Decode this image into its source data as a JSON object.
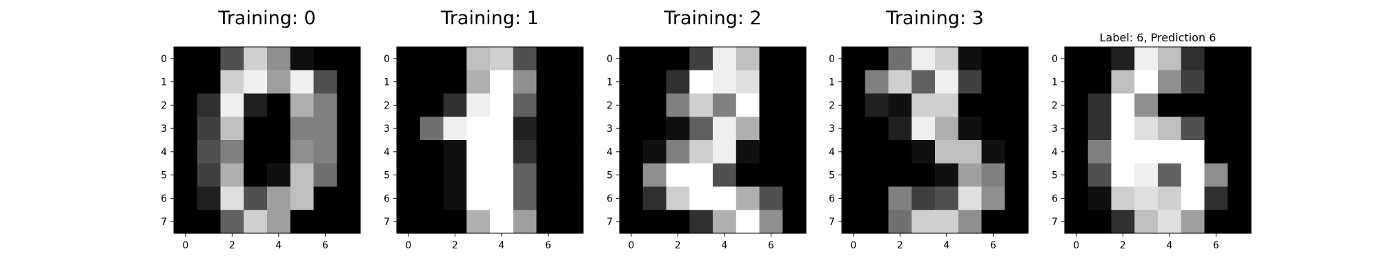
{
  "chart_data": [
    {
      "type": "heatmap",
      "title": "Training: 0",
      "x_ticks": [
        "0",
        "2",
        "4",
        "6"
      ],
      "y_ticks": [
        "0",
        "1",
        "2",
        "3",
        "4",
        "5",
        "6",
        "7"
      ],
      "value_range": [
        0,
        16
      ],
      "colormap": "gray",
      "values": [
        [
          0,
          0,
          5,
          13,
          9,
          1,
          0,
          0
        ],
        [
          0,
          0,
          13,
          15,
          10,
          15,
          5,
          0
        ],
        [
          0,
          3,
          15,
          2,
          0,
          11,
          8,
          0
        ],
        [
          0,
          4,
          12,
          0,
          0,
          8,
          8,
          0
        ],
        [
          0,
          5,
          8,
          0,
          0,
          9,
          8,
          0
        ],
        [
          0,
          4,
          11,
          0,
          1,
          12,
          7,
          0
        ],
        [
          0,
          2,
          14,
          5,
          10,
          12,
          0,
          0
        ],
        [
          0,
          0,
          6,
          13,
          10,
          0,
          0,
          0
        ]
      ]
    },
    {
      "type": "heatmap",
      "title": "Training: 1",
      "x_ticks": [
        "0",
        "2",
        "4",
        "6"
      ],
      "y_ticks": [
        "0",
        "1",
        "2",
        "3",
        "4",
        "5",
        "6",
        "7"
      ],
      "value_range": [
        0,
        16
      ],
      "colormap": "gray",
      "values": [
        [
          0,
          0,
          0,
          12,
          13,
          5,
          0,
          0
        ],
        [
          0,
          0,
          0,
          11,
          16,
          9,
          0,
          0
        ],
        [
          0,
          0,
          3,
          15,
          16,
          6,
          0,
          0
        ],
        [
          0,
          7,
          15,
          16,
          16,
          2,
          0,
          0
        ],
        [
          0,
          0,
          1,
          16,
          16,
          3,
          0,
          0
        ],
        [
          0,
          0,
          1,
          16,
          16,
          6,
          0,
          0
        ],
        [
          0,
          0,
          1,
          16,
          16,
          6,
          0,
          0
        ],
        [
          0,
          0,
          0,
          11,
          16,
          10,
          0,
          0
        ]
      ]
    },
    {
      "type": "heatmap",
      "title": "Training: 2",
      "x_ticks": [
        "0",
        "2",
        "4",
        "6"
      ],
      "y_ticks": [
        "0",
        "1",
        "2",
        "3",
        "4",
        "5",
        "6",
        "7"
      ],
      "value_range": [
        0,
        16
      ],
      "colormap": "gray",
      "values": [
        [
          0,
          0,
          0,
          4,
          15,
          12,
          0,
          0
        ],
        [
          0,
          0,
          3,
          16,
          15,
          14,
          0,
          0
        ],
        [
          0,
          0,
          8,
          13,
          8,
          16,
          0,
          0
        ],
        [
          0,
          0,
          1,
          6,
          15,
          11,
          0,
          0
        ],
        [
          0,
          1,
          8,
          13,
          15,
          1,
          0,
          0
        ],
        [
          0,
          9,
          16,
          16,
          5,
          0,
          0,
          0
        ],
        [
          0,
          3,
          13,
          16,
          16,
          11,
          5,
          0
        ],
        [
          0,
          0,
          0,
          3,
          11,
          16,
          9,
          0
        ]
      ]
    },
    {
      "type": "heatmap",
      "title": "Training: 3",
      "x_ticks": [
        "0",
        "2",
        "4",
        "6"
      ],
      "y_ticks": [
        "0",
        "1",
        "2",
        "3",
        "4",
        "5",
        "6",
        "7"
      ],
      "value_range": [
        0,
        16
      ],
      "colormap": "gray",
      "values": [
        [
          0,
          0,
          7,
          15,
          13,
          1,
          0,
          0
        ],
        [
          0,
          8,
          13,
          6,
          15,
          4,
          0,
          0
        ],
        [
          0,
          2,
          1,
          13,
          13,
          0,
          0,
          0
        ],
        [
          0,
          0,
          2,
          15,
          11,
          1,
          0,
          0
        ],
        [
          0,
          0,
          0,
          1,
          12,
          12,
          1,
          0
        ],
        [
          0,
          0,
          0,
          0,
          1,
          10,
          8,
          0
        ],
        [
          0,
          0,
          8,
          4,
          5,
          14,
          9,
          0
        ],
        [
          0,
          0,
          7,
          13,
          13,
          9,
          0,
          0
        ]
      ]
    },
    {
      "type": "heatmap",
      "title": "Label: 6, Prediction 6",
      "x_ticks": [
        "0",
        "2",
        "4",
        "6"
      ],
      "y_ticks": [
        "0",
        "1",
        "2",
        "3",
        "4",
        "5",
        "6",
        "7"
      ],
      "value_range": [
        0,
        16
      ],
      "colormap": "gray",
      "values": [
        [
          0,
          0,
          2,
          15,
          12,
          3,
          0,
          0
        ],
        [
          0,
          0,
          12,
          16,
          9,
          4,
          0,
          0
        ],
        [
          0,
          3,
          16,
          9,
          0,
          0,
          0,
          0
        ],
        [
          0,
          3,
          16,
          14,
          12,
          5,
          0,
          0
        ],
        [
          0,
          8,
          16,
          16,
          16,
          16,
          0,
          0
        ],
        [
          0,
          5,
          16,
          15,
          6,
          16,
          9,
          0
        ],
        [
          0,
          1,
          13,
          14,
          13,
          16,
          3,
          0
        ],
        [
          0,
          0,
          3,
          12,
          14,
          10,
          0,
          0
        ]
      ]
    }
  ]
}
